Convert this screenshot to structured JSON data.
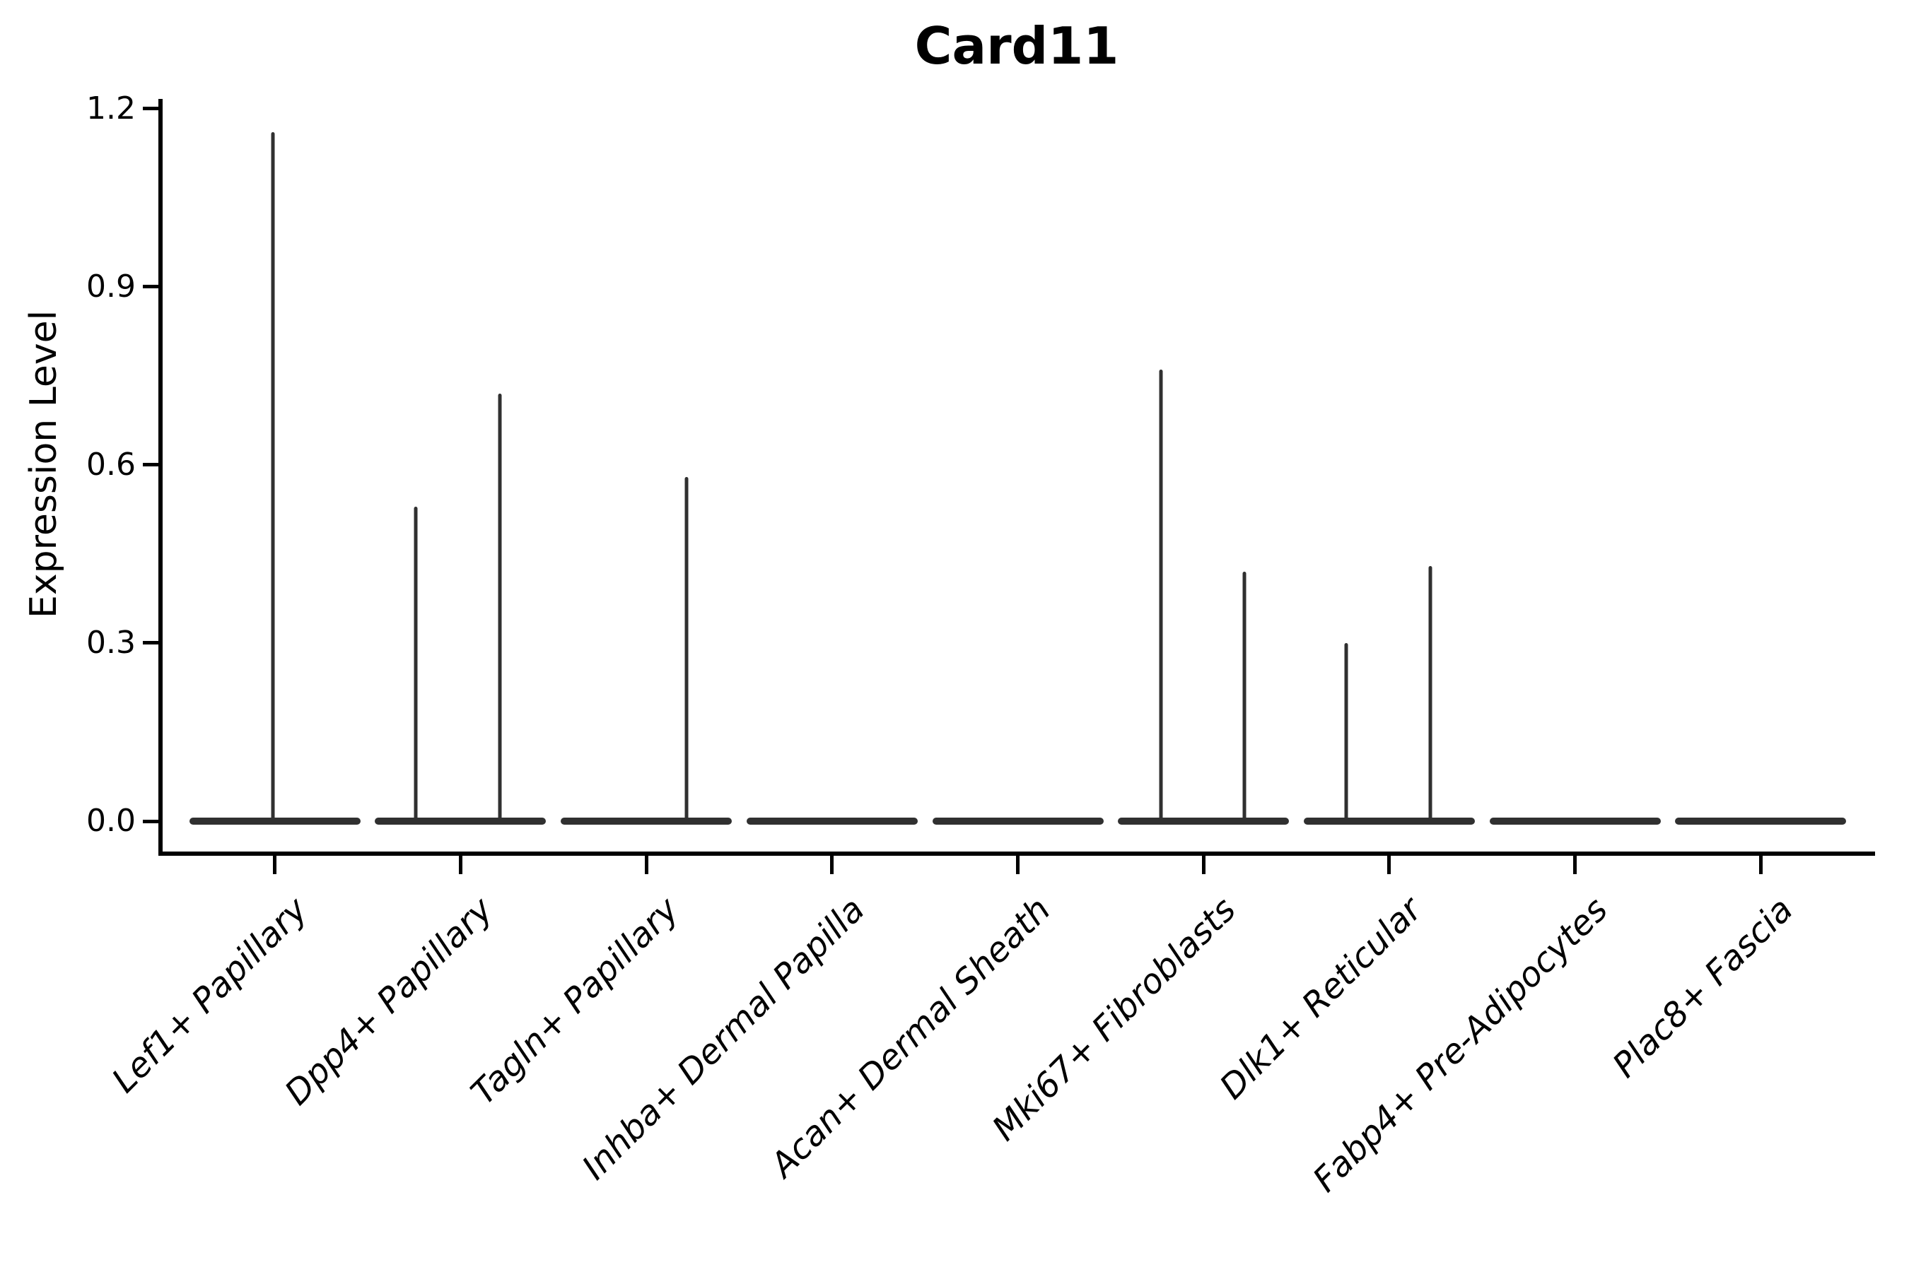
{
  "title": "Card11",
  "axes": {
    "y_label": "Expression Level",
    "y_tick_labels": [
      "0.0",
      "0.3",
      "0.6",
      "0.9",
      "1.2"
    ],
    "x_tick_labels": [
      "Lef1+ Papillary",
      "Dpp4+ Papillary",
      "Tagln+ Papillary",
      "Inhba+ Dermal Papilla",
      "Acan+ Dermal Sheath",
      "Mki67+ Fibroblasts",
      "Dlk1+ Reticular",
      "Fabp4+ Pre-Adipocytes",
      "Plac8+ Fascia"
    ]
  },
  "style": {
    "violin_color": "#303030",
    "axis_color": "#000000",
    "background": "#ffffff"
  },
  "chart_data": {
    "type": "violin",
    "title": "Card11",
    "xlabel": "",
    "ylabel": "Expression Level",
    "ylim": [
      0,
      1.2
    ],
    "yticks": [
      0.0,
      0.3,
      0.6,
      0.9,
      1.2
    ],
    "grid": false,
    "legend": null,
    "description": "Violin plot of Card11 expression per fibroblast cluster; each violin is collapsed flat at 0 with thin spikes marking the few expressing cells",
    "categories": [
      "Lef1+ Papillary",
      "Dpp4+ Papillary",
      "Tagln+ Papillary",
      "Inhba+ Dermal Papilla",
      "Acan+ Dermal Sheath",
      "Mki67+ Fibroblasts",
      "Dlk1+ Reticular",
      "Fabp4+ Pre-Adipocytes",
      "Plac8+ Fascia"
    ],
    "series": [
      {
        "category": "Lef1+ Papillary",
        "baseline_value": 0,
        "spikes": [
          {
            "value": 1.16,
            "dx": -3
          }
        ]
      },
      {
        "category": "Dpp4+ Papillary",
        "baseline_value": 0,
        "spikes": [
          {
            "value": 0.53,
            "dx": -63
          },
          {
            "value": 0.72,
            "dx": 56
          }
        ]
      },
      {
        "category": "Tagln+ Papillary",
        "baseline_value": 0,
        "spikes": [
          {
            "value": 0.58,
            "dx": 57
          }
        ]
      },
      {
        "category": "Inhba+ Dermal Papilla",
        "baseline_value": 0,
        "spikes": []
      },
      {
        "category": "Acan+ Dermal Sheath",
        "baseline_value": 0,
        "spikes": []
      },
      {
        "category": "Mki67+ Fibroblasts",
        "baseline_value": 0,
        "spikes": [
          {
            "value": 0.76,
            "dx": -60
          },
          {
            "value": 0.42,
            "dx": 58
          }
        ]
      },
      {
        "category": "Dlk1+ Reticular",
        "baseline_value": 0,
        "spikes": [
          {
            "value": 0.3,
            "dx": -61
          },
          {
            "value": 0.43,
            "dx": 58
          }
        ]
      },
      {
        "category": "Fabp4+ Pre-Adipocytes",
        "baseline_value": 0,
        "spikes": []
      },
      {
        "category": "Plac8+ Fascia",
        "baseline_value": 0,
        "spikes": []
      }
    ],
    "max_expression_per_category": [
      1.16,
      0.72,
      0.58,
      0,
      0,
      0.76,
      0.43,
      0,
      0
    ]
  }
}
